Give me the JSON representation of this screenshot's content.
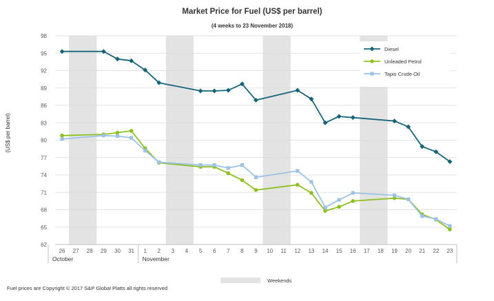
{
  "chart_data": {
    "type": "line",
    "title": "Market Price for Fuel (US$ per barrel)",
    "subtitle": "(4 weeks to 23 November 2018)",
    "ylabel": "(US$ per barrel)",
    "xlabel": "",
    "ylim": [
      62,
      98
    ],
    "yticks": [
      62,
      65,
      68,
      71,
      74,
      77,
      80,
      83,
      86,
      89,
      92,
      95,
      98
    ],
    "grid": true,
    "legend_position": "top-right",
    "categories": [
      "26",
      "27",
      "28",
      "29",
      "30",
      "31",
      "1",
      "2",
      "3",
      "4",
      "5",
      "6",
      "7",
      "8",
      "9",
      "10",
      "11",
      "12",
      "13",
      "14",
      "15",
      "16",
      "17",
      "18",
      "19",
      "20",
      "21",
      "22",
      "23"
    ],
    "month_labels": [
      {
        "label": "October",
        "start_index": 0
      },
      {
        "label": "November",
        "start_index": 6
      }
    ],
    "weekend_bands": [
      [
        1,
        2
      ],
      [
        8,
        9
      ],
      [
        15,
        16
      ],
      [
        22,
        23
      ]
    ],
    "weekend_label": "Weekends",
    "series": [
      {
        "name": "Diesel",
        "color": "#17647a",
        "marker": "diamond",
        "values": [
          95.3,
          null,
          null,
          95.3,
          94.0,
          93.7,
          92.1,
          89.9,
          null,
          null,
          88.5,
          88.5,
          88.6,
          89.7,
          86.9,
          null,
          null,
          88.6,
          87.1,
          83.0,
          84.1,
          83.9,
          null,
          null,
          83.3,
          82.3,
          78.9,
          78.0,
          76.3
        ]
      },
      {
        "name": "Unleaded Petrol",
        "color": "#8dc021",
        "marker": "circle",
        "values": [
          80.8,
          null,
          null,
          81.0,
          81.3,
          81.6,
          78.6,
          76.1,
          null,
          null,
          75.4,
          75.4,
          74.3,
          73.1,
          71.4,
          null,
          null,
          72.3,
          70.9,
          67.8,
          68.5,
          69.5,
          null,
          null,
          70.0,
          69.8,
          67.2,
          66.3,
          64.6
        ]
      },
      {
        "name": "Tapis Crude Oil",
        "color": "#9cc3e5",
        "marker": "square",
        "values": [
          80.2,
          null,
          null,
          80.8,
          80.7,
          80.4,
          78.2,
          76.2,
          null,
          null,
          75.7,
          75.7,
          75.2,
          75.7,
          73.6,
          null,
          null,
          74.7,
          72.8,
          68.4,
          69.7,
          70.9,
          null,
          null,
          70.5,
          69.8,
          66.9,
          66.4,
          65.2
        ]
      }
    ],
    "footer": "Fuel prices are Copyright © 2017 S&P Global Platts all rights reserved"
  }
}
